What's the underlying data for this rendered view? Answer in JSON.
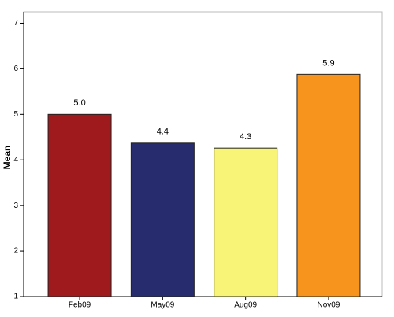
{
  "chart_data": {
    "type": "bar",
    "y_label": "Mean",
    "categories": [
      "Feb09",
      "May09",
      "Aug09",
      "Nov09"
    ],
    "values": [
      5.0,
      4.37,
      4.26,
      5.88
    ],
    "value_labels": [
      "5.0",
      "4.4",
      "4.3",
      "5.9"
    ],
    "colors": [
      "#9e1a1d",
      "#262c6e",
      "#f8f477",
      "#f7941e"
    ],
    "ylim": [
      1,
      7.25
    ],
    "yticks": [
      1,
      2,
      3,
      4,
      5,
      6,
      7
    ]
  }
}
